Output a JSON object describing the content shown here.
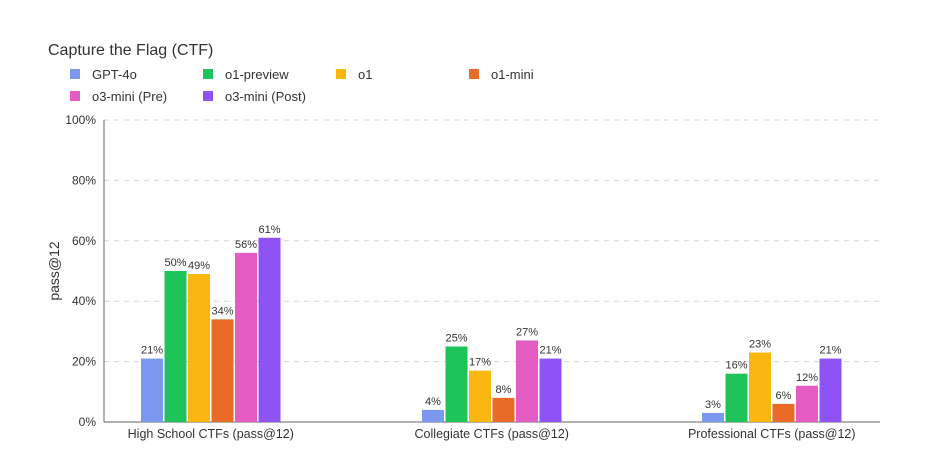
{
  "chart_data": {
    "type": "bar",
    "title": "Capture the Flag (CTF)",
    "ylabel": "pass@12",
    "ylim": [
      0,
      100
    ],
    "yticks": [
      "0%",
      "20%",
      "40%",
      "60%",
      "80%",
      "100%"
    ],
    "grid": true,
    "legend_position": "top-left",
    "categories": [
      "High School CTFs (pass@12)",
      "Collegiate CTFs (pass@12)",
      "Professional CTFs (pass@12)"
    ],
    "series": [
      {
        "name": "GPT-4o",
        "color": "#7b98ee",
        "values": [
          21,
          4,
          3
        ],
        "labels": [
          "21%",
          "4%",
          "3%"
        ]
      },
      {
        "name": "o1-preview",
        "color": "#1ec45a",
        "values": [
          50,
          25,
          16
        ],
        "labels": [
          "50%",
          "25%",
          "16%"
        ]
      },
      {
        "name": "o1",
        "color": "#f8b60f",
        "values": [
          49,
          17,
          23
        ],
        "labels": [
          "49%",
          "17%",
          "23%"
        ]
      },
      {
        "name": "o1-mini",
        "color": "#ea6b27",
        "values": [
          34,
          8,
          6
        ],
        "labels": [
          "34%",
          "8%",
          "6%"
        ]
      },
      {
        "name": "o3-mini (Pre)",
        "color": "#e45cc3",
        "values": [
          56,
          27,
          12
        ],
        "labels": [
          "56%",
          "27%",
          "12%"
        ]
      },
      {
        "name": "o3-mini (Post)",
        "color": "#8f52f5",
        "values": [
          61,
          21,
          21
        ],
        "labels": [
          "61%",
          "21%",
          "21%"
        ]
      }
    ]
  }
}
